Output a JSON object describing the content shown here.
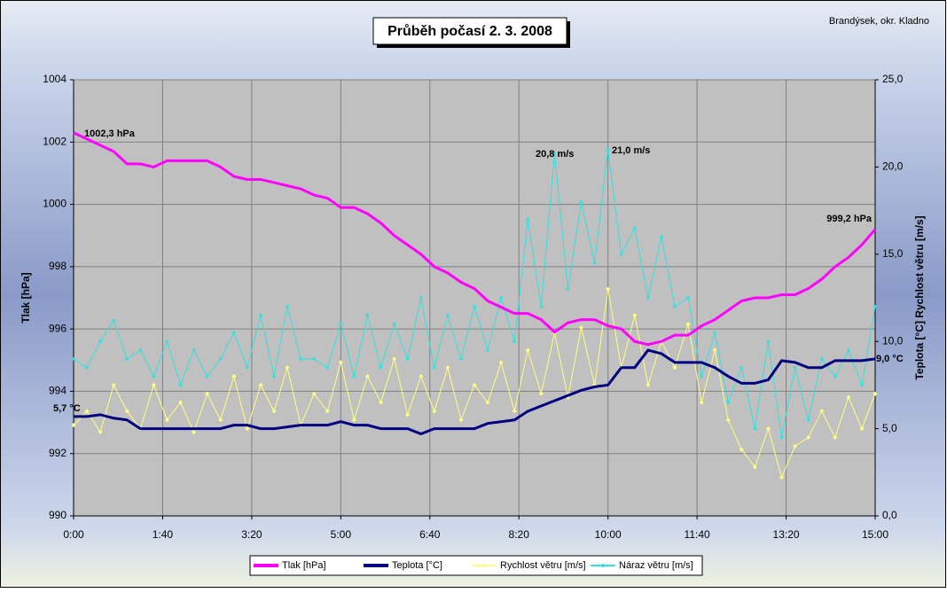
{
  "chart_data": {
    "type": "line",
    "title": "Průběh počasí 2. 3. 2008",
    "subtitle": "Brandýsek, okr. Kladno",
    "y_label": "Tlak [hPa]",
    "y2_label": "Teplota [°C]  Rychlost větru [m/s]",
    "x": [
      0,
      15,
      30,
      45,
      60,
      75,
      90,
      105,
      120,
      135,
      150,
      165,
      180,
      195,
      210,
      225,
      240,
      255,
      270,
      285,
      300,
      315,
      330,
      345,
      360,
      375,
      390,
      405,
      420,
      435,
      450,
      465,
      480,
      495,
      510,
      525,
      540,
      555,
      570,
      585,
      600,
      615,
      630,
      645,
      660,
      675,
      690,
      705,
      720,
      735,
      750,
      765,
      780,
      795,
      810,
      825,
      840,
      855,
      870,
      885,
      900
    ],
    "xlim": [
      0,
      900
    ],
    "xticks": [
      {
        "value": 0,
        "label": "0:00"
      },
      {
        "value": 100,
        "label": "1:40"
      },
      {
        "value": 200,
        "label": "3:20"
      },
      {
        "value": 300,
        "label": "5:00"
      },
      {
        "value": 400,
        "label": "6:40"
      },
      {
        "value": 500,
        "label": "8:20"
      },
      {
        "value": 600,
        "label": "10:00"
      },
      {
        "value": 700,
        "label": "11:40"
      },
      {
        "value": 800,
        "label": "13:20"
      },
      {
        "value": 900,
        "label": "15:00"
      }
    ],
    "ylim": [
      990,
      1004
    ],
    "yticks": [
      990,
      992,
      994,
      996,
      998,
      1000,
      1002,
      1004
    ],
    "y2lim": [
      0,
      25
    ],
    "y2ticks": [
      {
        "value": 0,
        "label": "0,0"
      },
      {
        "value": 5,
        "label": "5,0"
      },
      {
        "value": 10,
        "label": "10,0"
      },
      {
        "value": 15,
        "label": "15,0"
      },
      {
        "value": 20,
        "label": "20,0"
      },
      {
        "value": 25,
        "label": "25,0"
      }
    ],
    "grid": true,
    "legend": "bottom",
    "series": [
      {
        "name": "Tlak [hPa]",
        "color": "#ff00ff",
        "values": [
          1002.3,
          1002.1,
          1001.9,
          1001.7,
          1001.3,
          1001.3,
          1001.2,
          1001.4,
          1001.4,
          1001.4,
          1001.4,
          1001.2,
          1000.9,
          1000.8,
          1000.8,
          1000.7,
          1000.6,
          1000.5,
          1000.3,
          1000.2,
          999.9,
          999.9,
          999.7,
          999.4,
          999.0,
          998.7,
          998.4,
          998.0,
          997.8,
          997.5,
          997.3,
          996.9,
          996.7,
          996.5,
          996.5,
          996.3,
          995.9,
          996.2,
          996.3,
          996.3,
          996.1,
          996.0,
          995.6,
          995.5,
          995.6,
          995.8,
          995.8,
          996.1,
          996.3,
          996.6,
          996.9,
          997.0,
          997.0,
          997.1,
          997.1,
          997.3,
          997.6,
          998.0,
          998.3,
          998.7,
          999.2
        ]
      },
      {
        "name": "Teplota [°C]",
        "color": "#000080",
        "axis": "y2",
        "values": [
          5.7,
          5.7,
          5.8,
          5.6,
          5.5,
          5.0,
          5.0,
          5.0,
          5.0,
          5.0,
          5.0,
          5.0,
          5.2,
          5.2,
          5.0,
          5.0,
          5.1,
          5.2,
          5.2,
          5.2,
          5.4,
          5.2,
          5.2,
          5.0,
          5.0,
          5.0,
          4.7,
          5.0,
          5.0,
          5.0,
          5.0,
          5.3,
          5.4,
          5.5,
          6.0,
          6.3,
          6.6,
          6.9,
          7.2,
          7.4,
          7.5,
          8.5,
          8.5,
          9.5,
          9.3,
          8.8,
          8.8,
          8.8,
          8.5,
          8.0,
          7.6,
          7.6,
          7.8,
          8.9,
          8.8,
          8.5,
          8.5,
          8.9,
          8.9,
          8.9,
          9.0
        ]
      },
      {
        "name": "Rychlost větru [m/s]",
        "color": "#ffff80",
        "axis": "y2",
        "values": [
          5.2,
          6.0,
          4.8,
          7.5,
          6.0,
          5.0,
          7.5,
          5.5,
          6.5,
          4.8,
          7.0,
          5.5,
          8.0,
          5.0,
          7.5,
          6.0,
          8.5,
          5.2,
          7.0,
          6.0,
          8.8,
          5.5,
          8.0,
          6.5,
          9.0,
          5.8,
          8.0,
          6.0,
          8.5,
          5.5,
          7.5,
          6.5,
          8.8,
          6.0,
          9.5,
          7.0,
          10.5,
          6.8,
          10.8,
          7.5,
          13.0,
          8.5,
          11.5,
          7.5,
          10.0,
          8.5,
          11.0,
          6.5,
          9.5,
          5.5,
          3.8,
          2.8,
          5.0,
          2.2,
          4.0,
          4.5,
          6.0,
          4.5,
          6.8,
          5.0,
          7.0
        ]
      },
      {
        "name": "Náraz větru [m/s]",
        "color": "#33e0e0",
        "axis": "y2",
        "values": [
          9.0,
          8.5,
          10.0,
          11.2,
          9.0,
          9.5,
          8.0,
          10.0,
          7.5,
          9.5,
          8.0,
          9.0,
          10.5,
          8.5,
          11.5,
          8.0,
          12.0,
          9.0,
          9.0,
          8.5,
          11.0,
          8.0,
          11.5,
          8.5,
          11.0,
          9.0,
          12.5,
          8.5,
          11.5,
          9.0,
          12.0,
          9.5,
          12.5,
          10.0,
          17.0,
          12.0,
          20.8,
          13.0,
          18.0,
          14.5,
          21.0,
          15.0,
          16.5,
          12.5,
          16.0,
          12.0,
          12.5,
          8.0,
          10.5,
          6.5,
          8.5,
          5.0,
          10.0,
          4.5,
          8.5,
          5.5,
          9.0,
          8.0,
          9.5,
          7.5,
          12.0
        ]
      }
    ],
    "annotations": [
      "1002,3 hPa",
      "20,8 m/s",
      "21,0 m/s",
      "999,2 hPa",
      "5,7 °C",
      "9,0 °C"
    ]
  }
}
